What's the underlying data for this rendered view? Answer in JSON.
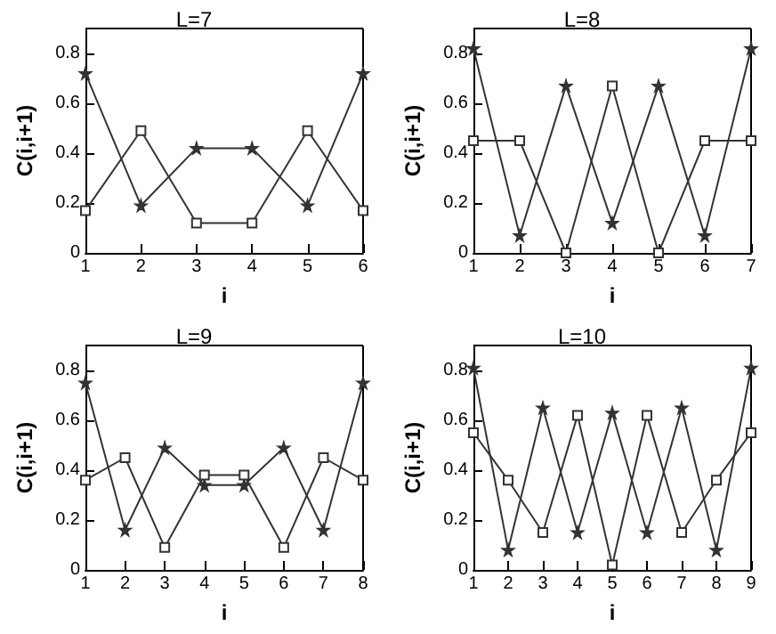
{
  "chart_data": [
    {
      "type": "line",
      "title": "L=7",
      "xlabel": "i",
      "ylabel": "C(i,i+1)",
      "xlim": [
        1,
        6
      ],
      "xticks": [
        1,
        2,
        3,
        4,
        5,
        6
      ],
      "ylim": [
        0,
        0.9
      ],
      "yticks": [
        0,
        0.2,
        0.4,
        0.6,
        0.8
      ],
      "x": [
        1,
        2,
        3,
        4,
        5,
        6
      ],
      "series": [
        {
          "marker": "star",
          "color": "#333333",
          "values": [
            0.72,
            0.19,
            0.42,
            0.42,
            0.19,
            0.72
          ]
        },
        {
          "marker": "square",
          "color": "#333333",
          "values": [
            0.17,
            0.49,
            0.12,
            0.12,
            0.49,
            0.17
          ]
        }
      ]
    },
    {
      "type": "line",
      "title": "L=8",
      "xlabel": "i",
      "ylabel": "C(i,i+1)",
      "xlim": [
        1,
        7
      ],
      "xticks": [
        1,
        2,
        3,
        4,
        5,
        6,
        7
      ],
      "ylim": [
        0,
        0.9
      ],
      "yticks": [
        0,
        0.2,
        0.4,
        0.6,
        0.8
      ],
      "x": [
        1,
        2,
        3,
        4,
        5,
        6,
        7
      ],
      "series": [
        {
          "marker": "star",
          "color": "#333333",
          "values": [
            0.82,
            0.07,
            0.67,
            0.12,
            0.67,
            0.07,
            0.82
          ]
        },
        {
          "marker": "square",
          "color": "#333333",
          "values": [
            0.45,
            0.45,
            0,
            0.67,
            0,
            0.45,
            0.45
          ]
        }
      ]
    },
    {
      "type": "line",
      "title": "L=9",
      "xlabel": "i",
      "ylabel": "C(i,i+1)",
      "xlim": [
        1,
        8
      ],
      "xticks": [
        1,
        2,
        3,
        4,
        5,
        6,
        7,
        8
      ],
      "ylim": [
        0,
        0.9
      ],
      "yticks": [
        0,
        0.2,
        0.4,
        0.6,
        0.8
      ],
      "x": [
        1,
        2,
        3,
        4,
        5,
        6,
        7,
        8
      ],
      "series": [
        {
          "marker": "star",
          "color": "#333333",
          "values": [
            0.75,
            0.16,
            0.49,
            0.34,
            0.34,
            0.49,
            0.16,
            0.75
          ]
        },
        {
          "marker": "square",
          "color": "#333333",
          "values": [
            0.36,
            0.45,
            0.09,
            0.38,
            0.38,
            0.09,
            0.45,
            0.36
          ]
        }
      ]
    },
    {
      "type": "line",
      "title": "L=10",
      "xlabel": "i",
      "ylabel": "C(i,i+1)",
      "xlim": [
        1,
        9
      ],
      "xticks": [
        1,
        2,
        3,
        4,
        5,
        6,
        7,
        8,
        9
      ],
      "ylim": [
        0,
        0.9
      ],
      "yticks": [
        0,
        0.2,
        0.4,
        0.6,
        0.8
      ],
      "x": [
        1,
        2,
        3,
        4,
        5,
        6,
        7,
        8,
        9
      ],
      "series": [
        {
          "marker": "star",
          "color": "#333333",
          "values": [
            0.81,
            0.08,
            0.65,
            0.15,
            0.63,
            0.15,
            0.65,
            0.08,
            0.81
          ]
        },
        {
          "marker": "square",
          "color": "#333333",
          "values": [
            0.55,
            0.36,
            0.15,
            0.62,
            0.02,
            0.62,
            0.15,
            0.36,
            0.55
          ]
        }
      ]
    }
  ]
}
